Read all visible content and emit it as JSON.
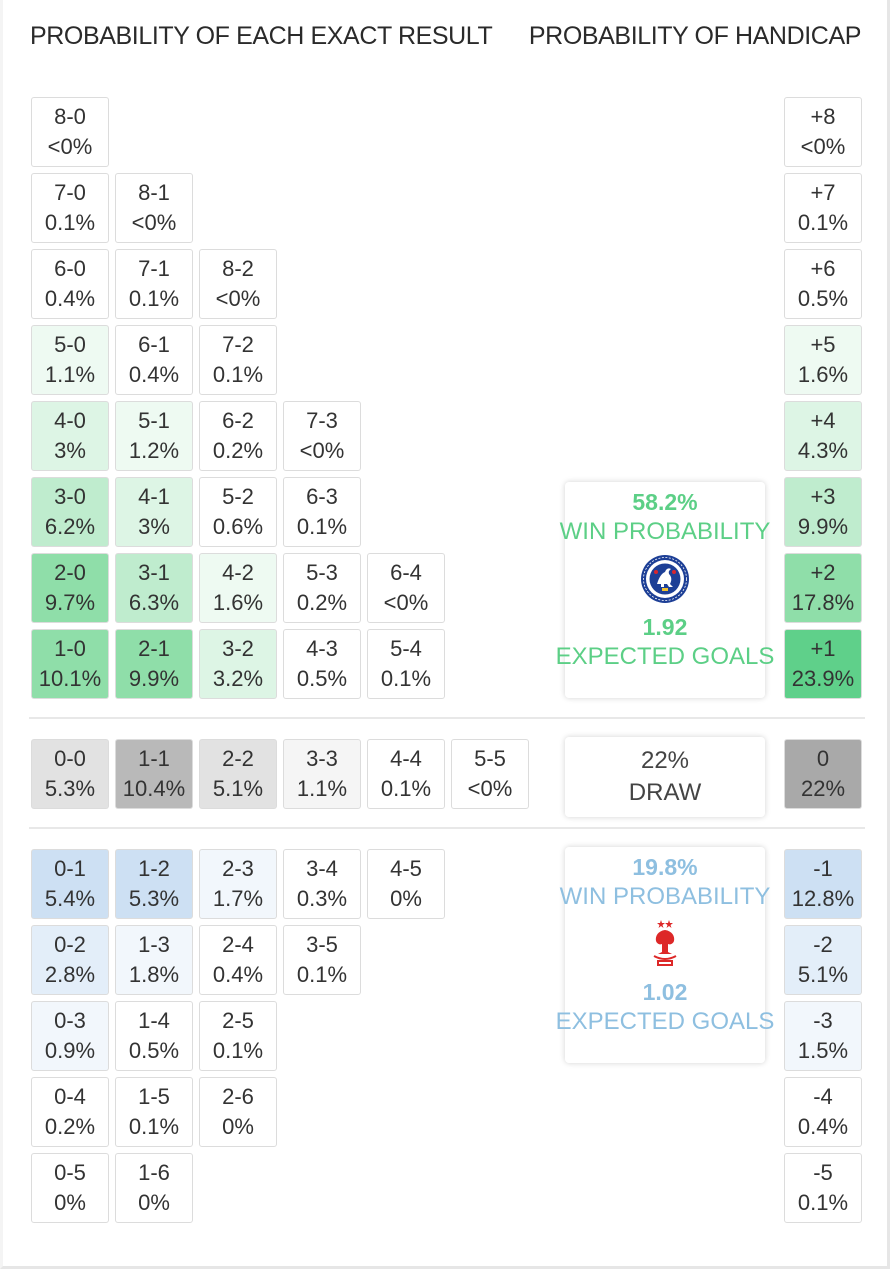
{
  "headers": {
    "exact": "PROBABILITY OF EACH EXACT RESULT",
    "handicap": "PROBABILITY OF HANDICAP"
  },
  "colors": {
    "home_text": "#5ccf86",
    "away_text": "#8ebfe0",
    "draw_text": "#444444"
  },
  "home_results": [
    [
      {
        "score": "8-0",
        "prob": "<0%",
        "tint": 0
      }
    ],
    [
      {
        "score": "7-0",
        "prob": "0.1%",
        "tint": 0
      },
      {
        "score": "8-1",
        "prob": "<0%",
        "tint": 0
      }
    ],
    [
      {
        "score": "6-0",
        "prob": "0.4%",
        "tint": 0
      },
      {
        "score": "7-1",
        "prob": "0.1%",
        "tint": 0
      },
      {
        "score": "8-2",
        "prob": "<0%",
        "tint": 0
      }
    ],
    [
      {
        "score": "5-0",
        "prob": "1.1%",
        "tint": 1
      },
      {
        "score": "6-1",
        "prob": "0.4%",
        "tint": 0
      },
      {
        "score": "7-2",
        "prob": "0.1%",
        "tint": 0
      }
    ],
    [
      {
        "score": "4-0",
        "prob": "3%",
        "tint": 2
      },
      {
        "score": "5-1",
        "prob": "1.2%",
        "tint": 1
      },
      {
        "score": "6-2",
        "prob": "0.2%",
        "tint": 0
      },
      {
        "score": "7-3",
        "prob": "<0%",
        "tint": 0
      }
    ],
    [
      {
        "score": "3-0",
        "prob": "6.2%",
        "tint": 3
      },
      {
        "score": "4-1",
        "prob": "3%",
        "tint": 2
      },
      {
        "score": "5-2",
        "prob": "0.6%",
        "tint": 0
      },
      {
        "score": "6-3",
        "prob": "0.1%",
        "tint": 0
      }
    ],
    [
      {
        "score": "2-0",
        "prob": "9.7%",
        "tint": 4
      },
      {
        "score": "3-1",
        "prob": "6.3%",
        "tint": 3
      },
      {
        "score": "4-2",
        "prob": "1.6%",
        "tint": 1
      },
      {
        "score": "5-3",
        "prob": "0.2%",
        "tint": 0
      },
      {
        "score": "6-4",
        "prob": "<0%",
        "tint": 0
      }
    ],
    [
      {
        "score": "1-0",
        "prob": "10.1%",
        "tint": 4
      },
      {
        "score": "2-1",
        "prob": "9.9%",
        "tint": 4
      },
      {
        "score": "3-2",
        "prob": "3.2%",
        "tint": 2
      },
      {
        "score": "4-3",
        "prob": "0.5%",
        "tint": 0
      },
      {
        "score": "5-4",
        "prob": "0.1%",
        "tint": 0
      }
    ]
  ],
  "draw_results": [
    {
      "score": "0-0",
      "prob": "5.3%",
      "tint": 2
    },
    {
      "score": "1-1",
      "prob": "10.4%",
      "tint": 3
    },
    {
      "score": "2-2",
      "prob": "5.1%",
      "tint": 2
    },
    {
      "score": "3-3",
      "prob": "1.1%",
      "tint": 1
    },
    {
      "score": "4-4",
      "prob": "0.1%",
      "tint": 0
    },
    {
      "score": "5-5",
      "prob": "<0%",
      "tint": 0
    }
  ],
  "away_results": [
    [
      {
        "score": "0-1",
        "prob": "5.4%",
        "tint": 3
      },
      {
        "score": "1-2",
        "prob": "5.3%",
        "tint": 3
      },
      {
        "score": "2-3",
        "prob": "1.7%",
        "tint": 1
      },
      {
        "score": "3-4",
        "prob": "0.3%",
        "tint": 0
      },
      {
        "score": "4-5",
        "prob": "0%",
        "tint": 0
      }
    ],
    [
      {
        "score": "0-2",
        "prob": "2.8%",
        "tint": 2
      },
      {
        "score": "1-3",
        "prob": "1.8%",
        "tint": 1
      },
      {
        "score": "2-4",
        "prob": "0.4%",
        "tint": 0
      },
      {
        "score": "3-5",
        "prob": "0.1%",
        "tint": 0
      }
    ],
    [
      {
        "score": "0-3",
        "prob": "0.9%",
        "tint": 1
      },
      {
        "score": "1-4",
        "prob": "0.5%",
        "tint": 0
      },
      {
        "score": "2-5",
        "prob": "0.1%",
        "tint": 0
      }
    ],
    [
      {
        "score": "0-4",
        "prob": "0.2%",
        "tint": 0
      },
      {
        "score": "1-5",
        "prob": "0.1%",
        "tint": 0
      },
      {
        "score": "2-6",
        "prob": "0%",
        "tint": 0
      }
    ],
    [
      {
        "score": "0-5",
        "prob": "0%",
        "tint": 0
      },
      {
        "score": "1-6",
        "prob": "0%",
        "tint": 0
      }
    ]
  ],
  "home_handicap": [
    {
      "label": "+8",
      "prob": "<0%",
      "tint": 0
    },
    {
      "label": "+7",
      "prob": "0.1%",
      "tint": 0
    },
    {
      "label": "+6",
      "prob": "0.5%",
      "tint": 0
    },
    {
      "label": "+5",
      "prob": "1.6%",
      "tint": 1
    },
    {
      "label": "+4",
      "prob": "4.3%",
      "tint": 2
    },
    {
      "label": "+3",
      "prob": "9.9%",
      "tint": 3
    },
    {
      "label": "+2",
      "prob": "17.8%",
      "tint": 4
    },
    {
      "label": "+1",
      "prob": "23.9%",
      "tint": 5
    }
  ],
  "draw_handicap": {
    "label": "0",
    "prob": "22%",
    "tint": 4
  },
  "away_handicap": [
    {
      "label": "-1",
      "prob": "12.8%",
      "tint": 3
    },
    {
      "label": "-2",
      "prob": "5.1%",
      "tint": 2
    },
    {
      "label": "-3",
      "prob": "1.5%",
      "tint": 1
    },
    {
      "label": "-4",
      "prob": "0.4%",
      "tint": 0
    },
    {
      "label": "-5",
      "prob": "0.1%",
      "tint": 0
    }
  ],
  "home_card": {
    "win_pct": "58.2%",
    "win_label": "WIN PROBABILITY",
    "crest_icon": "chelsea-crest-icon",
    "xg": "1.92",
    "xg_label": "EXPECTED GOALS"
  },
  "draw_card": {
    "pct": "22%",
    "label": "DRAW"
  },
  "away_card": {
    "win_pct": "19.8%",
    "win_label": "WIN PROBABILITY",
    "crest_icon": "nottingham-forest-crest-icon",
    "xg": "1.02",
    "xg_label": "EXPECTED GOALS"
  }
}
